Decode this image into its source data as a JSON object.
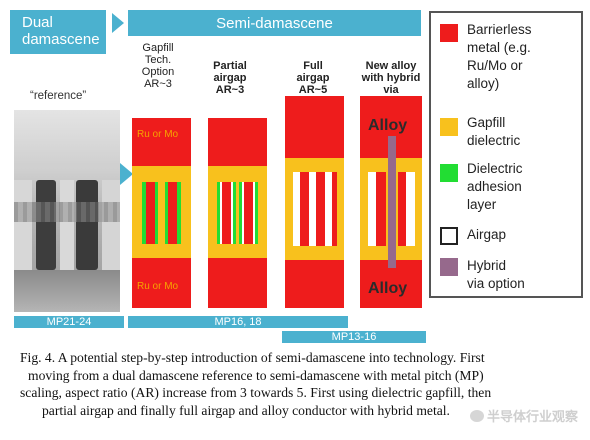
{
  "headers": {
    "dual": "Dual damascene",
    "semi": "Semi-damascene"
  },
  "reference_label": "“reference”",
  "columns": [
    {
      "title": "Gapfill Tech. Option AR~3",
      "bold": false
    },
    {
      "title_line1": "Partial",
      "title_line2": "airgap",
      "title_line3": "AR~3",
      "bold": true
    },
    {
      "title_line1": "Full",
      "title_line2": "airgap",
      "title_line3": "AR~5",
      "bold": true
    },
    {
      "title_line1": "New alloy",
      "title_line2": "with hybrid",
      "title_line3": "via",
      "bold": true
    }
  ],
  "col1_title": {
    "l1": "Gapfill",
    "l2": "Tech.",
    "l3": "Option",
    "l4": "AR~3"
  },
  "metal_labels": {
    "top": "Ru or Mo",
    "bottom": "Ru or Mo"
  },
  "alloy_labels": {
    "top": "Alloy",
    "bottom": "Alloy"
  },
  "legend": [
    {
      "color": "#ee1c1c",
      "lines": [
        "Barrierless",
        "metal (e.g.",
        "Ru/Mo or",
        "alloy)"
      ],
      "icon": "red-swatch"
    },
    {
      "color": "#f8c11d",
      "lines": [
        "Gapfill",
        "dielectric"
      ],
      "icon": "yellow-swatch"
    },
    {
      "color": "#22dd33",
      "lines": [
        "Dielectric",
        "adhesion",
        "layer"
      ],
      "icon": "green-swatch"
    },
    {
      "color": "#ffffff",
      "lines": [
        "Airgap"
      ],
      "icon": "white-swatch"
    },
    {
      "color": "#96698c",
      "lines": [
        "Hybrid",
        "via option"
      ],
      "icon": "purple-swatch"
    }
  ],
  "mp_bars": {
    "mp21": "MP21-24",
    "mp16": "MP16, 18",
    "mp13": "MP13-16"
  },
  "caption": {
    "l1": "Fig. 4. A potential step-by-step introduction of semi-damascene into technology. First",
    "l2": "moving from a dual damascene reference to semi-damascene with metal pitch (MP)",
    "l3": "scaling, aspect ratio (AR) increase from 3 towards 5. First using dielectric gapfill, then",
    "l4": "partial airgap and finally full airgap and alloy conductor with hybrid metal."
  },
  "watermark": "半导体行业观察"
}
